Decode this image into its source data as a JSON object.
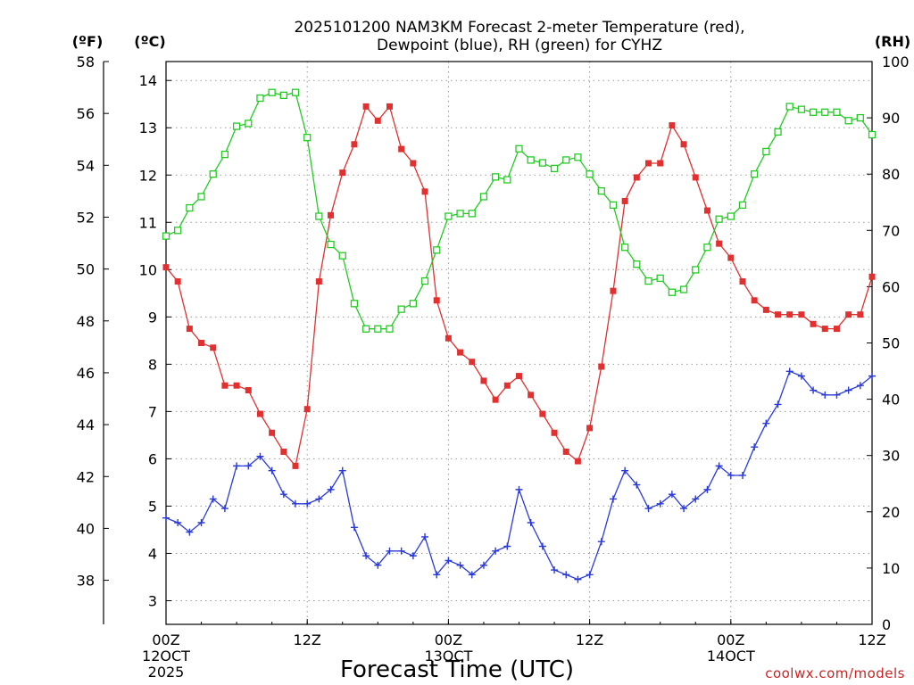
{
  "chart_data": {
    "type": "line",
    "title_line1": "2025101200 NAM3KM Forecast 2-meter Temperature (red),",
    "title_line2": "Dewpoint (blue), RH (green) for CYHZ",
    "xlabel": "Forecast Time (UTC)",
    "credit": "coolwx.com/models",
    "left_axis_f": {
      "label": "(ºF)",
      "ticks": [
        "58",
        "56",
        "54",
        "52",
        "50",
        "48",
        "46",
        "44",
        "42",
        "40",
        "38"
      ],
      "range": [
        36.3,
        58
      ]
    },
    "left_axis_c": {
      "label": "(ºC)",
      "ticks": [
        "14",
        "13",
        "12",
        "11",
        "10",
        "9",
        "8",
        "7",
        "6",
        "5",
        "4",
        "3"
      ],
      "range": [
        2.5,
        14.4
      ]
    },
    "right_axis": {
      "label": "(RH)",
      "ticks": [
        "100",
        "90",
        "80",
        "70",
        "60",
        "50",
        "40",
        "30",
        "20",
        "10",
        "0"
      ],
      "range": [
        0,
        100
      ]
    },
    "x_ticks": [
      {
        "hour": 0,
        "label": "00Z",
        "date": "12OCT",
        "year": "2025"
      },
      {
        "hour": 12,
        "label": "12Z",
        "date": "",
        "year": ""
      },
      {
        "hour": 24,
        "label": "00Z",
        "date": "13OCT",
        "year": ""
      },
      {
        "hour": 36,
        "label": "12Z",
        "date": "",
        "year": ""
      },
      {
        "hour": 48,
        "label": "00Z",
        "date": "14OCT",
        "year": ""
      },
      {
        "hour": 60,
        "label": "12Z",
        "date": "",
        "year": ""
      }
    ],
    "x_range": [
      0,
      60
    ],
    "series": [
      {
        "name": "Temperature",
        "units": "C",
        "color": "#e03030",
        "marker": "filled-square",
        "values": [
          10.05,
          9.75,
          8.75,
          8.45,
          8.35,
          7.55,
          7.55,
          7.45,
          6.95,
          6.55,
          6.15,
          5.85,
          7.05,
          9.75,
          11.15,
          12.05,
          12.65,
          13.45,
          13.15,
          13.45,
          12.55,
          12.25,
          11.65,
          9.35,
          8.55,
          8.25,
          8.05,
          7.65,
          7.25,
          7.55,
          7.75,
          7.35,
          6.95,
          6.55,
          6.15,
          5.95,
          6.65,
          7.95,
          9.55,
          11.45,
          11.95,
          12.25,
          12.25,
          13.05,
          12.65,
          11.95,
          11.25,
          10.55,
          10.25,
          9.75,
          9.35,
          9.15,
          9.05,
          9.05,
          9.05,
          8.85,
          8.75,
          8.75,
          9.05,
          9.05,
          9.85
        ]
      },
      {
        "name": "Dewpoint",
        "units": "C",
        "color": "#2a3ad8",
        "marker": "plus",
        "values": [
          4.75,
          4.65,
          4.45,
          4.65,
          5.15,
          4.95,
          5.85,
          5.85,
          6.05,
          5.75,
          5.25,
          5.05,
          5.05,
          5.15,
          5.35,
          5.75,
          4.55,
          3.95,
          3.75,
          4.05,
          4.05,
          3.95,
          4.35,
          3.55,
          3.85,
          3.75,
          3.55,
          3.75,
          4.05,
          4.15,
          5.35,
          4.65,
          4.15,
          3.65,
          3.55,
          3.45,
          3.55,
          4.25,
          5.15,
          5.75,
          5.45,
          4.95,
          5.05,
          5.25,
          4.95,
          5.15,
          5.35,
          5.85,
          5.65,
          5.65,
          6.25,
          6.75,
          7.15,
          7.85,
          7.75,
          7.45,
          7.35,
          7.35,
          7.45,
          7.55,
          7.75
        ]
      },
      {
        "name": "RH",
        "units": "%",
        "color": "#22cc22",
        "marker": "open-square",
        "values": [
          69,
          70,
          74,
          76,
          80,
          83.5,
          88.5,
          89,
          93.5,
          94.5,
          94,
          94.5,
          86.5,
          72.5,
          67.5,
          65.5,
          57,
          52.5,
          52.5,
          52.5,
          56,
          57,
          61,
          66.5,
          72.5,
          73,
          73,
          76,
          79.5,
          79,
          84.5,
          82.5,
          82,
          81,
          82.5,
          83,
          80,
          77,
          74.5,
          67,
          64,
          61,
          61.5,
          59,
          59.5,
          63,
          67,
          72,
          72.5,
          74.5,
          80,
          84,
          87.5,
          92,
          91.5,
          91,
          91,
          91,
          89.5,
          90,
          87
        ]
      }
    ]
  }
}
